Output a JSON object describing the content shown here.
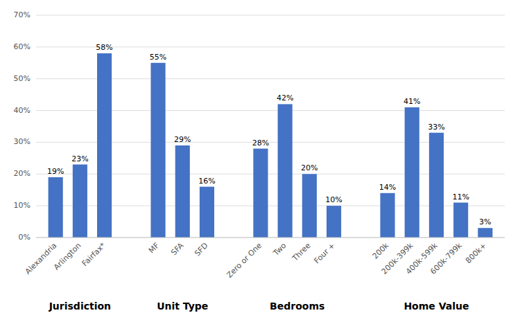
{
  "chart_data": {
    "type": "bar",
    "groups": [
      {
        "label": "Jurisdiction",
        "categories": [
          "Alexandria",
          "Arlington",
          "Fairfax*"
        ],
        "values": [
          0.19,
          0.23,
          0.58
        ],
        "value_labels": [
          "19%",
          "23%",
          "58%"
        ]
      },
      {
        "label": "Unit Type",
        "categories": [
          "MF",
          "SFA",
          "SFD"
        ],
        "values": [
          0.55,
          0.29,
          0.16
        ],
        "value_labels": [
          "55%",
          "29%",
          "16%"
        ]
      },
      {
        "label": "Bedrooms",
        "categories": [
          "Zero or One",
          "Two",
          "Three",
          "Four +"
        ],
        "values": [
          0.28,
          0.42,
          0.2,
          0.1
        ],
        "value_labels": [
          "28%",
          "42%",
          "20%",
          "10%"
        ]
      },
      {
        "label": "Home Value",
        "categories": [
          "200k",
          "200k-399k",
          "400k-599k",
          "600k-799k",
          "800k+"
        ],
        "values": [
          0.14,
          0.41,
          0.33,
          0.11,
          0.03
        ],
        "value_labels": [
          "14%",
          "41%",
          "33%",
          "11%",
          "3%"
        ]
      }
    ],
    "color": "#4472C4",
    "ylim": [
      0,
      0.7
    ],
    "yticks": [
      {
        "value": 0.0,
        "label": "0%"
      },
      {
        "value": 0.1,
        "label": "10%"
      },
      {
        "value": 0.2,
        "label": "20%"
      },
      {
        "value": 0.3,
        "label": "30%"
      },
      {
        "value": 0.4,
        "label": "40%"
      },
      {
        "value": 0.5,
        "label": "50%"
      },
      {
        "value": 0.6,
        "label": "60%"
      },
      {
        "value": 0.7,
        "label": "70%"
      }
    ],
    "grid": true,
    "data_labels": true
  }
}
